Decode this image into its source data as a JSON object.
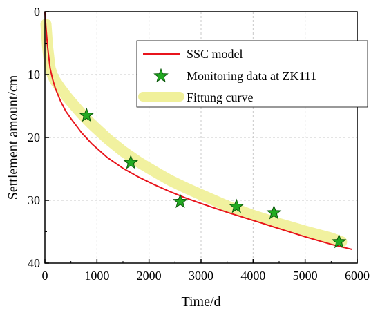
{
  "chart_data": {
    "type": "line",
    "xlabel": "Time/d",
    "ylabel": "Settlement amount/cm",
    "xlim": [
      0,
      6000
    ],
    "ylim": [
      0,
      40
    ],
    "y_inverted": true,
    "grid": true,
    "legend_position": "top-right",
    "x_ticks": [
      0,
      1000,
      2000,
      3000,
      4000,
      5000,
      6000
    ],
    "y_ticks": [
      0,
      10,
      20,
      30,
      40
    ],
    "series": [
      {
        "name": "SSC model",
        "kind": "line",
        "color": "#e8141c",
        "x": [
          0,
          20,
          50,
          100,
          150,
          200,
          300,
          400,
          500,
          700,
          900,
          1200,
          1500,
          1800,
          2100,
          2400,
          2700,
          3000,
          3500,
          4000,
          4500,
          5000,
          5500,
          5900
        ],
        "y": [
          0,
          2.5,
          5.5,
          9.0,
          10.8,
          12.2,
          14.2,
          15.8,
          17.0,
          19.2,
          21.0,
          23.2,
          24.9,
          26.3,
          27.5,
          28.6,
          29.6,
          30.5,
          31.9,
          33.2,
          34.5,
          35.8,
          37.0,
          37.8
        ]
      },
      {
        "name": "Monitoring data at ZK111",
        "kind": "scatter",
        "marker": "star",
        "color": "#22aa22",
        "x": [
          800,
          1650,
          2600,
          3680,
          4400,
          5650
        ],
        "y": [
          16.5,
          24.0,
          30.2,
          31.0,
          32.0,
          36.6
        ]
      },
      {
        "name": "Fittung curve",
        "kind": "line",
        "color": "#f0f09a",
        "x": [
          20,
          50,
          100,
          150,
          200,
          300,
          400,
          500,
          700,
          900,
          1200,
          1500,
          1800,
          2100,
          2400,
          2700,
          3000,
          3500,
          4000,
          4500,
          5000,
          5500,
          5700
        ],
        "y": [
          2.0,
          5.5,
          9.0,
          10.2,
          11.0,
          12.2,
          13.3,
          14.3,
          16.2,
          17.9,
          20.2,
          22.2,
          23.9,
          25.4,
          26.8,
          28.0,
          29.1,
          30.9,
          32.4,
          33.7,
          34.9,
          36.0,
          36.6
        ]
      }
    ]
  }
}
